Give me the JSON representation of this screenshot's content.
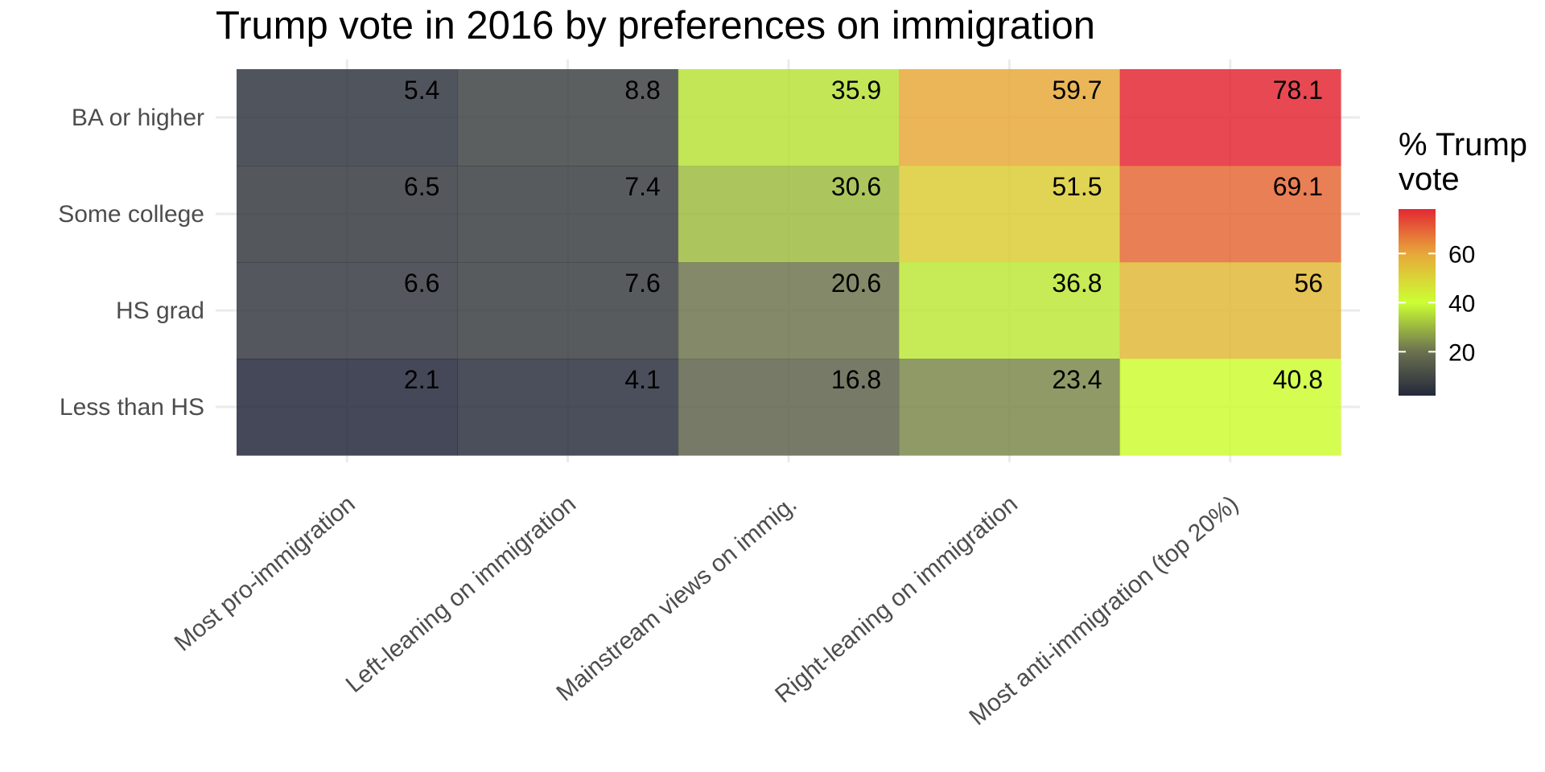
{
  "chart_data": {
    "type": "heatmap",
    "title": "Trump vote in 2016 by preferences on immigration",
    "xlabel": "",
    "ylabel": "",
    "x_categories": [
      "Most pro-immigration",
      "Left-leaning on immigration",
      "Mainstream views on immig.",
      "Right-leaning on immigration",
      "Most anti-immigration (top 20%)"
    ],
    "y_categories": [
      "BA or higher",
      "Some college",
      "HS grad",
      "Less than HS"
    ],
    "values": [
      [
        5.4,
        8.8,
        35.9,
        59.7,
        78.1
      ],
      [
        6.5,
        7.4,
        30.6,
        51.5,
        69.1
      ],
      [
        6.6,
        7.6,
        20.6,
        36.8,
        56
      ],
      [
        2.1,
        4.1,
        16.8,
        23.4,
        40.8
      ]
    ],
    "legend": {
      "title": "% Trump vote",
      "ticks": [
        20,
        40,
        60
      ],
      "range": [
        2.1,
        78.1
      ],
      "placement": "right"
    },
    "color_scale": {
      "stops": [
        {
          "value": 0,
          "color": "#1c2039"
        },
        {
          "value": 20,
          "color": "#6b7050"
        },
        {
          "value": 40,
          "color": "#ccff33"
        },
        {
          "value": 60,
          "color": "#e8a83a"
        },
        {
          "value": 80,
          "color": "#e21b33"
        }
      ],
      "tile_opacity": 0.85
    },
    "grid": true
  }
}
